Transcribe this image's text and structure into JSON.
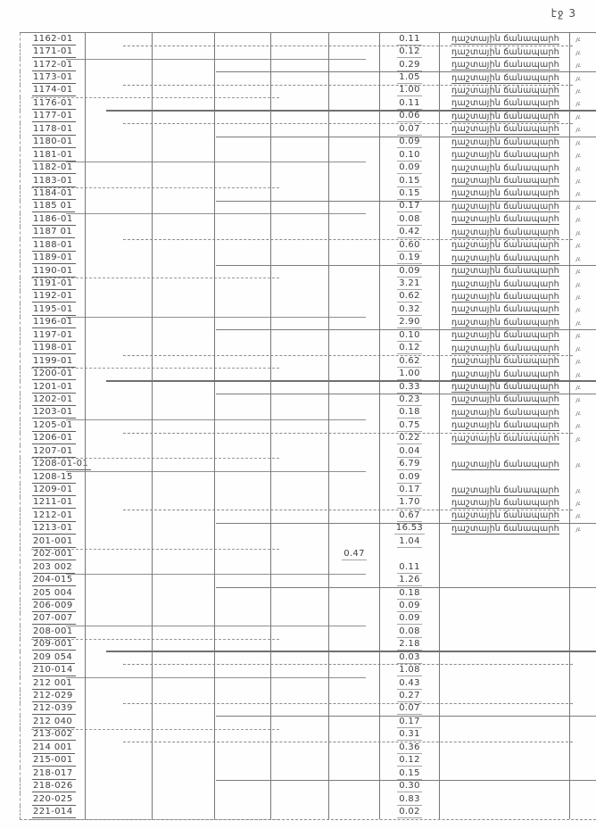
{
  "page": {
    "header_label": "էջ 3"
  },
  "table": {
    "road_label": "դաշտային ճանապարհ",
    "margin_mark": "յւ",
    "rows": [
      {
        "code": "1162-01",
        "value": "0.11",
        "alt": false,
        "label": true
      },
      {
        "code": "1171-01",
        "value": "0.12",
        "alt": false,
        "label": true
      },
      {
        "code": "1172-01",
        "value": "0.29",
        "alt": false,
        "label": true
      },
      {
        "code": "1173-01",
        "value": "1.05",
        "alt": false,
        "label": true
      },
      {
        "code": "1174-01",
        "value": "1.00",
        "alt": false,
        "label": true
      },
      {
        "code": "1176-01",
        "value": "0.11",
        "alt": false,
        "label": true
      },
      {
        "code": "1177-01",
        "value": "0.06",
        "alt": false,
        "label": true
      },
      {
        "code": "1178-01",
        "value": "0.07",
        "alt": false,
        "label": true
      },
      {
        "code": "1180-01",
        "value": "0.09",
        "alt": false,
        "label": true
      },
      {
        "code": "1181-01",
        "value": "0.10",
        "alt": false,
        "label": true
      },
      {
        "code": "1182-01",
        "value": "0.09",
        "alt": false,
        "label": true
      },
      {
        "code": "1183-01",
        "value": "0.15",
        "alt": false,
        "label": true
      },
      {
        "code": "1184-01",
        "value": "0.15",
        "alt": false,
        "label": true
      },
      {
        "code": "1185 01",
        "value": "0.17",
        "alt": false,
        "label": true
      },
      {
        "code": "1186-01",
        "value": "0.08",
        "alt": false,
        "label": true
      },
      {
        "code": "1187 01",
        "value": "0.42",
        "alt": false,
        "label": true
      },
      {
        "code": "1188-01",
        "value": "0.60",
        "alt": false,
        "label": true
      },
      {
        "code": "1189-01",
        "value": "0.19",
        "alt": false,
        "label": true
      },
      {
        "code": "1190-01",
        "value": "0.09",
        "alt": false,
        "label": true
      },
      {
        "code": "1191-01",
        "value": "3.21",
        "alt": false,
        "label": true
      },
      {
        "code": "1192-01",
        "value": "0.62",
        "alt": false,
        "label": true
      },
      {
        "code": "1195-01",
        "value": "0.32",
        "alt": false,
        "label": true
      },
      {
        "code": "1196-01",
        "value": "2.90",
        "alt": false,
        "label": true
      },
      {
        "code": "1197-01",
        "value": "0.10",
        "alt": false,
        "label": true
      },
      {
        "code": "1198-01",
        "value": "0.12",
        "alt": false,
        "label": true
      },
      {
        "code": "1199-01",
        "value": "0.62",
        "alt": false,
        "label": true
      },
      {
        "code": "1200-01",
        "value": "1.00",
        "alt": false,
        "label": true
      },
      {
        "code": "1201-01",
        "value": "0.33",
        "alt": false,
        "label": true
      },
      {
        "code": "1202-01",
        "value": "0.23",
        "alt": false,
        "label": true
      },
      {
        "code": "1203-01",
        "value": "0.18",
        "alt": false,
        "label": true
      },
      {
        "code": "1205-01",
        "value": "0.75",
        "alt": false,
        "label": true
      },
      {
        "code": "1206-01",
        "value": "0.22",
        "alt": false,
        "label": true
      },
      {
        "code": "1207-01",
        "value": "0.04",
        "alt": false,
        "label": false
      },
      {
        "code": "1208-01-01",
        "value": "6.79",
        "alt": false,
        "label": true
      },
      {
        "code": "1208-15",
        "value": "0.09",
        "alt": false,
        "label": false
      },
      {
        "code": "1209-01",
        "value": "0.17",
        "alt": false,
        "label": true
      },
      {
        "code": "1211-01",
        "value": "1.70",
        "alt": false,
        "label": true
      },
      {
        "code": "1212-01",
        "value": "0.67",
        "alt": false,
        "label": true
      },
      {
        "code": "1213-01",
        "value": "16.53",
        "alt": false,
        "label": true
      },
      {
        "code": "201-001",
        "value": "1.04",
        "alt": false,
        "label": false
      },
      {
        "code": "202-001",
        "value": "0.47",
        "alt": true,
        "label": false
      },
      {
        "code": "203 002",
        "value": "0.11",
        "alt": false,
        "label": false
      },
      {
        "code": "204-015",
        "value": "1.26",
        "alt": false,
        "label": false
      },
      {
        "code": "205 004",
        "value": "0.18",
        "alt": false,
        "label": false
      },
      {
        "code": "206-009",
        "value": "0.09",
        "alt": false,
        "label": false
      },
      {
        "code": "207-007",
        "value": "0.09",
        "alt": false,
        "label": false
      },
      {
        "code": "208-001",
        "value": "0.08",
        "alt": false,
        "label": false
      },
      {
        "code": "209-001",
        "value": "2.18",
        "alt": false,
        "label": false
      },
      {
        "code": "209 054",
        "value": "0.03",
        "alt": false,
        "label": false
      },
      {
        "code": "210-014",
        "value": "1.08",
        "alt": false,
        "label": false
      },
      {
        "code": "212 001",
        "value": "0.43",
        "alt": false,
        "label": false
      },
      {
        "code": "212-029",
        "value": "0.27",
        "alt": false,
        "label": false
      },
      {
        "code": "212-039",
        "value": "0.07",
        "alt": false,
        "label": false
      },
      {
        "code": "212 040",
        "value": "0.17",
        "alt": false,
        "label": false
      },
      {
        "code": "213-002",
        "value": "0.31",
        "alt": false,
        "label": false
      },
      {
        "code": "214 001",
        "value": "0.36",
        "alt": false,
        "label": false
      },
      {
        "code": "215-001",
        "value": "0.12",
        "alt": false,
        "label": false
      },
      {
        "code": "218-017",
        "value": "0.15",
        "alt": false,
        "label": false
      },
      {
        "code": "218-026",
        "value": "0.30",
        "alt": false,
        "label": false
      },
      {
        "code": "220-025",
        "value": "0.83",
        "alt": false,
        "label": false
      },
      {
        "code": "221-014",
        "value": "0.02",
        "alt": false,
        "label": false
      }
    ]
  }
}
